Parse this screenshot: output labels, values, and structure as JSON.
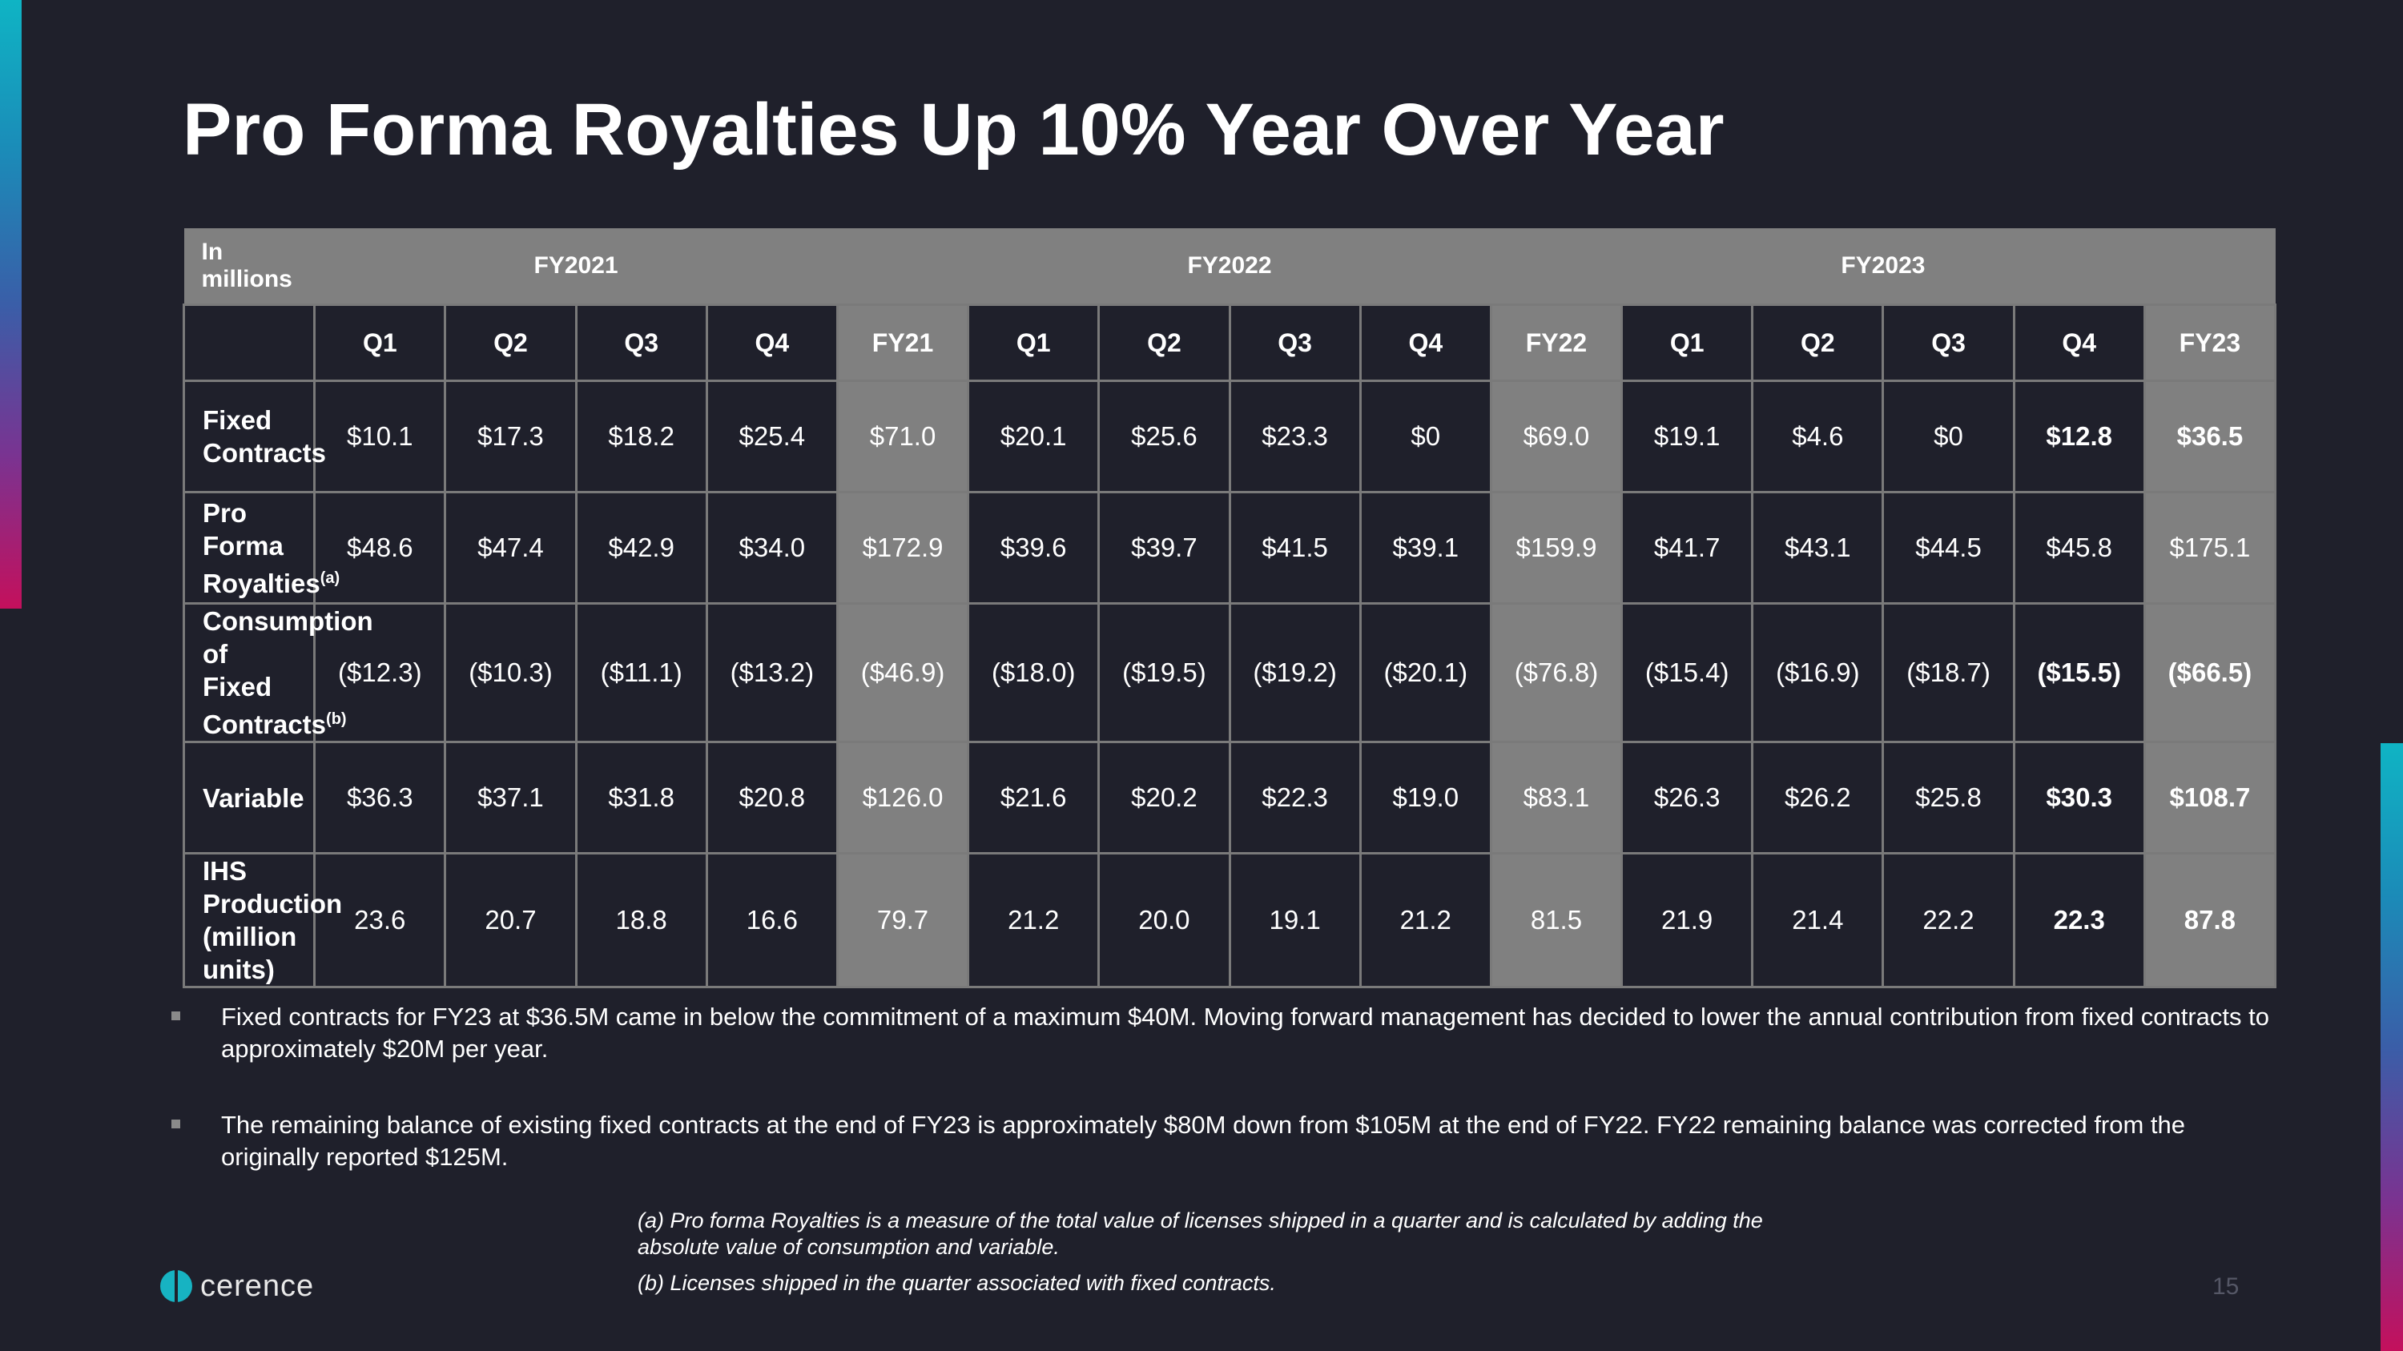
{
  "title": "Pro Forma Royalties Up 10% Year Over Year",
  "table": {
    "corner": "In millions",
    "years": [
      "FY2021",
      "FY2022",
      "FY2023"
    ],
    "columns": [
      "Q1",
      "Q2",
      "Q3",
      "Q4",
      "FY21",
      "Q1",
      "Q2",
      "Q3",
      "Q4",
      "FY22",
      "Q1",
      "Q2",
      "Q3",
      "Q4",
      "FY23"
    ],
    "rows": [
      {
        "label": [
          "Fixed Contracts"
        ],
        "cells": [
          "$10.1",
          "$17.3",
          "$18.2",
          "$25.4",
          "$71.0",
          "$20.1",
          "$25.6",
          "$23.3",
          "$0",
          "$69.0",
          "$19.1",
          "$4.6",
          "$0",
          "$12.8",
          "$36.5"
        ],
        "bold_cells": [
          13,
          14
        ]
      },
      {
        "label": [
          "Pro Forma",
          "Royalties"
        ],
        "sup": "(a)",
        "cells": [
          "$48.6",
          "$47.4",
          "$42.9",
          "$34.0",
          "$172.9",
          "$39.6",
          "$39.7",
          "$41.5",
          "$39.1",
          "$159.9",
          "$41.7",
          "$43.1",
          "$44.5",
          "$45.8",
          "$175.1"
        ]
      },
      {
        "label": [
          "Consumption of",
          "Fixed Contracts"
        ],
        "sup": "(b)",
        "cells": [
          "($12.3)",
          "($10.3)",
          "($11.1)",
          "($13.2)",
          "($46.9)",
          "($18.0)",
          "($19.5)",
          "($19.2)",
          "($20.1)",
          "($76.8)",
          "($15.4)",
          "($16.9)",
          "($18.7)",
          "($15.5)",
          "($66.5)"
        ],
        "bold_cells": [
          13,
          14
        ]
      },
      {
        "label": [
          "Variable"
        ],
        "cells": [
          "$36.3",
          "$37.1",
          "$31.8",
          "$20.8",
          "$126.0",
          "$21.6",
          "$20.2",
          "$22.3",
          "$19.0",
          "$83.1",
          "$26.3",
          "$26.2",
          "$25.8",
          "$30.3",
          "$108.7"
        ],
        "bold_cells": [
          13,
          14
        ]
      },
      {
        "label": [
          "IHS Production",
          "(million units)"
        ],
        "cells": [
          "23.6",
          "20.7",
          "18.8",
          "16.6",
          "79.7",
          "21.2",
          "20.0",
          "19.1",
          "21.2",
          "81.5",
          "21.9",
          "21.4",
          "22.2",
          "22.3",
          "87.8"
        ],
        "bold_cells": [
          13,
          14
        ]
      }
    ]
  },
  "bullets": [
    "Fixed contracts for FY23 at $36.5M came in below the commitment of a maximum $40M. Moving forward management has decided to lower the annual contribution from fixed contracts to approximately $20M per year.",
    "The remaining balance of existing fixed contracts at the end of FY23 is approximately $80M  down from $105M at the end of FY22. FY22 remaining balance was corrected from the originally reported $125M."
  ],
  "footnotes": [
    "(a) Pro forma Royalties is a measure of the total value of licenses shipped in a quarter and is calculated by adding the absolute value of consumption and variable.",
    "(b) Licenses shipped in the quarter associated with fixed contracts."
  ],
  "logo": "cerence",
  "page_number": "15"
}
